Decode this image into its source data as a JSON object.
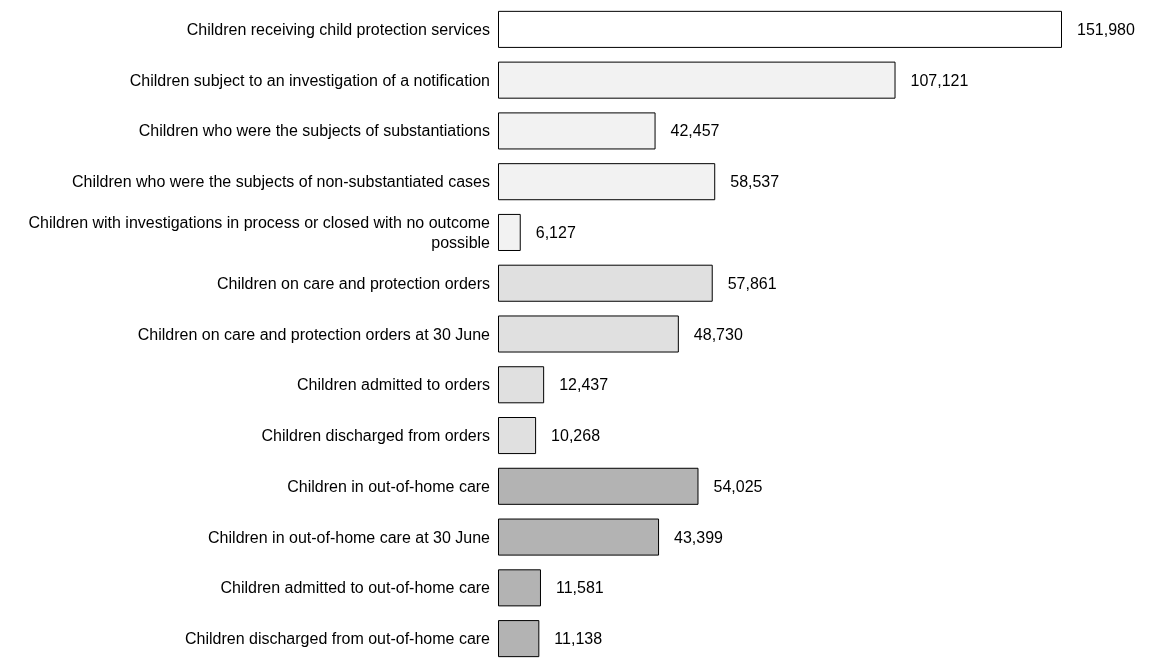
{
  "chart_data": {
    "type": "bar",
    "orientation": "horizontal",
    "tick_labels": "y",
    "value_labels": [
      "151,980",
      "107,121",
      "42,457",
      "58,537",
      "6,127",
      "57,861",
      "48,730",
      "12,437",
      "10,268",
      "54,025",
      "43,399",
      "11,581",
      "11,138"
    ],
    "categories": [
      "Children receiving child protection services",
      "Children subject to an investigation of a notification",
      "Children who were the subjects of substantiations",
      "Children who were the subjects of non-substantiated cases",
      "Children with investigations in process or closed with no outcome possible",
      "Children on care and protection orders",
      "Children on care and protection orders at 30 June",
      "Children admitted to orders",
      "Children discharged from orders",
      "Children in out-of-home care",
      "Children in out-of-home care at 30 June",
      "Children admitted to out-of-home care",
      "Children discharged from out-of-home care"
    ],
    "values": [
      151980,
      107121,
      42457,
      58537,
      6127,
      57861,
      48730,
      12437,
      10268,
      54025,
      43399,
      11581,
      11138
    ],
    "colors": [
      "#ffffff",
      "#f2f2f2",
      "#f2f2f2",
      "#f2f2f2",
      "#f2f2f2",
      "#e0e0e0",
      "#e0e0e0",
      "#e0e0e0",
      "#e0e0e0",
      "#b3b3b3",
      "#b3b3b3",
      "#b3b3b3",
      "#b3b3b3"
    ]
  }
}
